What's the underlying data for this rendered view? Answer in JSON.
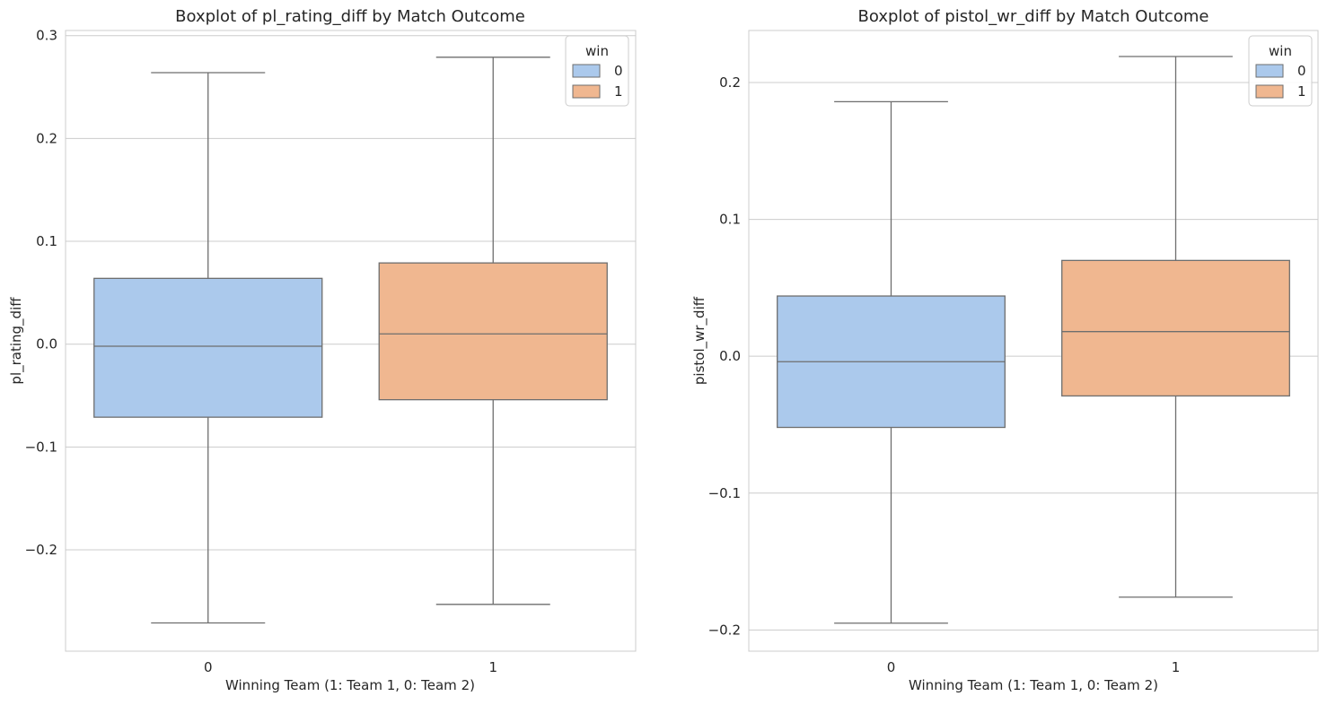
{
  "chart_data": [
    {
      "type": "boxplot",
      "title": "Boxplot of pl_rating_diff by Match Outcome",
      "xlabel": "Winning Team (1: Team 1, 0: Team 2)",
      "ylabel": "pl_rating_diff",
      "categories": [
        "0",
        "1"
      ],
      "ylim": [
        -0.2985,
        0.305
      ],
      "yticks": [
        -0.2,
        -0.1,
        0.0,
        0.1,
        0.2,
        0.3
      ],
      "ytick_labels": [
        "−0.2",
        "−0.1",
        "0.0",
        "0.1",
        "0.2",
        "0.3"
      ],
      "grid": true,
      "legend": {
        "title": "win",
        "placement": "top-right",
        "entries": [
          "0",
          "1"
        ]
      },
      "series": [
        {
          "name": "0",
          "color": "#abc9ec",
          "whisker_low": -0.271,
          "q1": -0.071,
          "median": -0.002,
          "q3": 0.064,
          "whisker_high": 0.264
        },
        {
          "name": "1",
          "color": "#f0b790",
          "whisker_low": -0.253,
          "q1": -0.054,
          "median": 0.01,
          "q3": 0.079,
          "whisker_high": 0.279
        }
      ]
    },
    {
      "type": "boxplot",
      "title": "Boxplot of pistol_wr_diff by Match Outcome",
      "xlabel": "Winning Team (1: Team 1, 0: Team 2)",
      "ylabel": "pistol_wr_diff",
      "categories": [
        "0",
        "1"
      ],
      "ylim": [
        -0.2155,
        0.238
      ],
      "yticks": [
        -0.2,
        -0.1,
        0.0,
        0.1,
        0.2
      ],
      "ytick_labels": [
        "−0.2",
        "−0.1",
        "0.0",
        "0.1",
        "0.2"
      ],
      "grid": true,
      "legend": {
        "title": "win",
        "placement": "top-right",
        "entries": [
          "0",
          "1"
        ]
      },
      "series": [
        {
          "name": "0",
          "color": "#abc9ec",
          "whisker_low": -0.195,
          "q1": -0.052,
          "median": -0.004,
          "q3": 0.044,
          "whisker_high": 0.186
        },
        {
          "name": "1",
          "color": "#f0b790",
          "whisker_low": -0.176,
          "q1": -0.029,
          "median": 0.018,
          "q3": 0.07,
          "whisker_high": 0.219
        }
      ]
    }
  ]
}
